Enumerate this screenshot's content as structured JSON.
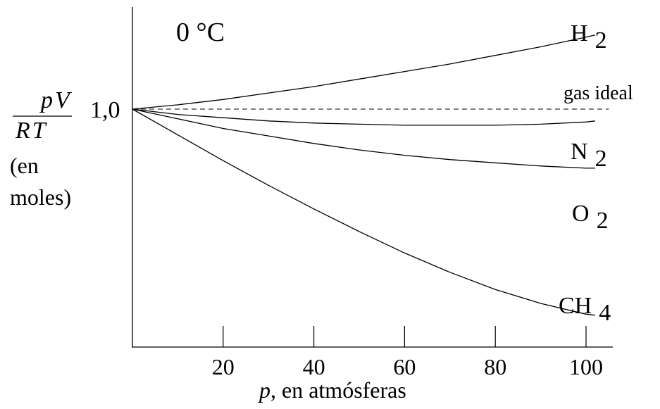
{
  "chart_data": {
    "type": "line",
    "title": "0 °C",
    "xlabel": {
      "var": "p",
      "rest": ", en atmósferas"
    },
    "ylabel": {
      "numerator": "pV",
      "denominator": "RT",
      "unit_line1": "(en",
      "unit_line2": "moles)"
    },
    "xlim": [
      0,
      105
    ],
    "ylim": [
      0.75,
      1.1
    ],
    "x_ticks": [
      20,
      40,
      60,
      80,
      100
    ],
    "x_tick_labels": [
      "20",
      "40",
      "60",
      "80",
      "100"
    ],
    "y_ticks": [
      1.0
    ],
    "y_tick_labels": [
      "1,0"
    ],
    "grid": false,
    "series": [
      {
        "name": "H",
        "subscript": "2",
        "x": [
          0,
          10,
          20,
          30,
          40,
          50,
          60,
          70,
          80,
          90,
          100,
          102
        ],
        "y": [
          1.0,
          1.004,
          1.009,
          1.015,
          1.021,
          1.028,
          1.035,
          1.042,
          1.05,
          1.058,
          1.067,
          1.069
        ]
      },
      {
        "name": "gas ideal",
        "subscript": "",
        "dashed": true,
        "x": [
          0,
          105
        ],
        "y": [
          1.0,
          1.0
        ]
      },
      {
        "name": "N",
        "subscript": "2",
        "x": [
          0,
          10,
          20,
          30,
          40,
          50,
          60,
          70,
          80,
          90,
          100,
          102
        ],
        "y": [
          1.0,
          0.995,
          0.992,
          0.989,
          0.987,
          0.986,
          0.985,
          0.985,
          0.985,
          0.986,
          0.988,
          0.989
        ]
      },
      {
        "name": "O",
        "subscript": "2",
        "x": [
          0,
          10,
          20,
          30,
          40,
          50,
          60,
          70,
          80,
          90,
          100,
          102
        ],
        "y": [
          1.0,
          0.991,
          0.982,
          0.975,
          0.968,
          0.962,
          0.957,
          0.953,
          0.95,
          0.947,
          0.945,
          0.945
        ]
      },
      {
        "name": "CH",
        "subscript": "4",
        "x": [
          0,
          10,
          20,
          30,
          40,
          50,
          60,
          70,
          80,
          90,
          100,
          102
        ],
        "y": [
          1.0,
          0.976,
          0.952,
          0.929,
          0.907,
          0.886,
          0.866,
          0.848,
          0.832,
          0.819,
          0.809,
          0.808
        ]
      }
    ]
  }
}
